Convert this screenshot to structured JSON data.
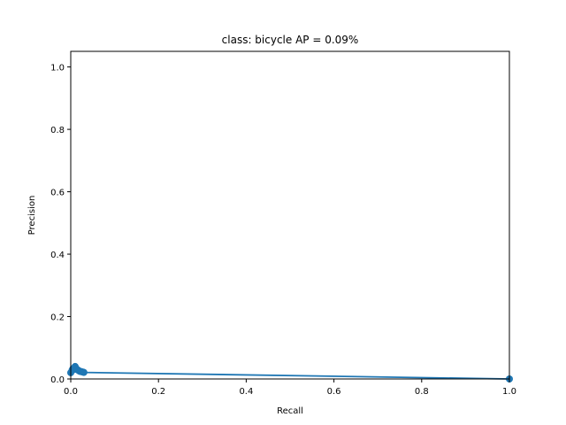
{
  "chart_data": {
    "type": "line",
    "title": "class: bicycle AP = 0.09%",
    "xlabel": "Recall",
    "ylabel": "Precision",
    "xlim": [
      0,
      1.0
    ],
    "ylim": [
      0,
      1.05
    ],
    "xticks": [
      0.0,
      0.2,
      0.4,
      0.6,
      0.8,
      1.0
    ],
    "yticks": [
      0.0,
      0.2,
      0.4,
      0.6,
      0.8,
      1.0
    ],
    "grid": false,
    "legend": "none",
    "series": [
      {
        "color": "#1f77b4",
        "x": [
          0.0,
          0.003,
          0.005,
          0.007,
          0.008,
          0.01,
          0.012,
          0.015,
          0.018,
          0.02,
          0.022,
          0.025,
          0.028,
          0.03,
          1.0
        ],
        "y": [
          0.02,
          0.028,
          0.033,
          0.03,
          0.036,
          0.04,
          0.034,
          0.03,
          0.027,
          0.025,
          0.024,
          0.023,
          0.022,
          0.021,
          0.0
        ]
      }
    ]
  }
}
